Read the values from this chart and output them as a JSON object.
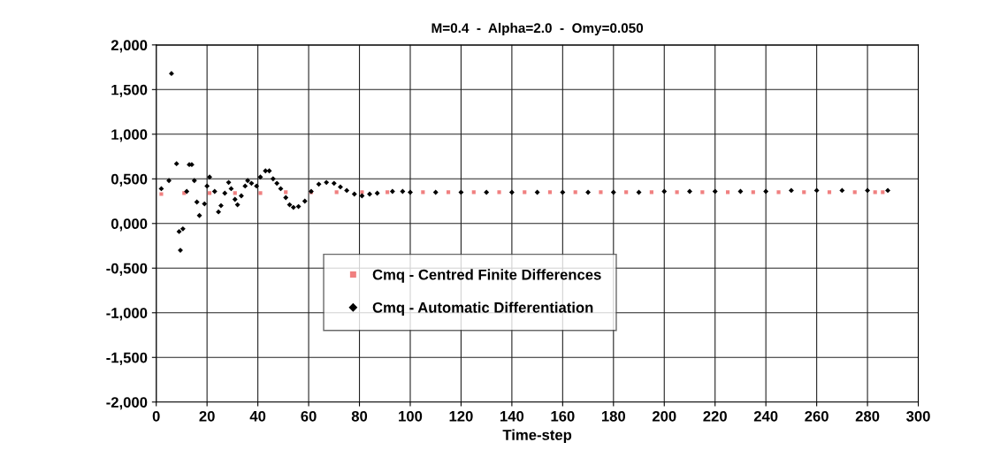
{
  "chart_data": {
    "type": "scatter",
    "title": "M=0.4  -  Alpha=2.0  -  Omy=0.050",
    "xlabel": "Time-step",
    "xlim": [
      0,
      300
    ],
    "xticks": [
      0,
      20,
      40,
      60,
      80,
      100,
      120,
      140,
      160,
      180,
      200,
      220,
      240,
      260,
      280,
      300
    ],
    "ylim": [
      -2,
      2
    ],
    "yticks": [
      {
        "value": -2,
        "label": "-2,000"
      },
      {
        "value": -1.5,
        "label": "-1,500"
      },
      {
        "value": -1,
        "label": "-1,000"
      },
      {
        "value": -0.5,
        "label": "-0,500"
      },
      {
        "value": 0,
        "label": "0,000"
      },
      {
        "value": 0.5,
        "label": "0,500"
      },
      {
        "value": 1,
        "label": "1,000"
      },
      {
        "value": 1.5,
        "label": "1,500"
      },
      {
        "value": 2,
        "label": "2,000"
      }
    ],
    "grid": true,
    "legend": "bottom left",
    "series": [
      {
        "name": "Cmq - Centred Finite Differences",
        "color": "#f08080",
        "marker": "square",
        "x": [
          2,
          11,
          21,
          31,
          41,
          51,
          61,
          71,
          81,
          91,
          105,
          115,
          125,
          135,
          145,
          155,
          165,
          175,
          185,
          195,
          205,
          215,
          225,
          235,
          245,
          255,
          265,
          275,
          283,
          286
        ],
        "values": [
          0.33,
          0.34,
          0.34,
          0.34,
          0.34,
          0.35,
          0.35,
          0.35,
          0.35,
          0.35,
          0.35,
          0.35,
          0.35,
          0.35,
          0.35,
          0.35,
          0.35,
          0.35,
          0.35,
          0.35,
          0.35,
          0.35,
          0.35,
          0.35,
          0.35,
          0.35,
          0.35,
          0.35,
          0.35,
          0.35
        ]
      },
      {
        "name": "Cmq - Automatic Differentiation",
        "color": "#000000",
        "marker": "diamond",
        "x": [
          2,
          5,
          6,
          8,
          9,
          9.5,
          10.5,
          12,
          13,
          14,
          15,
          16,
          17,
          19,
          20,
          21,
          23,
          24.5,
          25.5,
          27,
          28.5,
          29.5,
          31,
          32,
          33.5,
          35,
          36,
          37.5,
          39.5,
          41,
          43,
          44.5,
          46,
          47.5,
          49,
          51,
          52.5,
          54,
          56,
          58.5,
          61,
          64,
          67,
          70,
          72.5,
          75,
          78,
          81,
          84,
          87,
          93,
          97,
          100,
          110,
          120,
          130,
          140,
          150,
          160,
          170,
          180,
          190,
          200,
          210,
          220,
          230,
          240,
          250,
          260,
          270,
          280,
          288
        ],
        "values": [
          0.39,
          0.48,
          1.68,
          0.67,
          -0.09,
          -0.3,
          -0.06,
          0.36,
          0.66,
          0.66,
          0.48,
          0.24,
          0.09,
          0.22,
          0.42,
          0.52,
          0.36,
          0.13,
          0.2,
          0.34,
          0.46,
          0.39,
          0.27,
          0.21,
          0.31,
          0.42,
          0.48,
          0.45,
          0.42,
          0.52,
          0.59,
          0.59,
          0.5,
          0.45,
          0.39,
          0.29,
          0.21,
          0.18,
          0.19,
          0.25,
          0.36,
          0.44,
          0.46,
          0.45,
          0.41,
          0.37,
          0.33,
          0.31,
          0.33,
          0.34,
          0.36,
          0.36,
          0.35,
          0.35,
          0.35,
          0.35,
          0.35,
          0.35,
          0.35,
          0.35,
          0.35,
          0.35,
          0.36,
          0.36,
          0.36,
          0.36,
          0.36,
          0.37,
          0.37,
          0.37,
          0.37,
          0.37
        ]
      }
    ]
  }
}
